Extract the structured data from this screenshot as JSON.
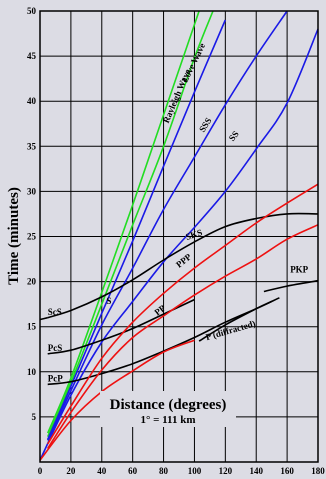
{
  "chart_data": {
    "type": "line",
    "title": "",
    "xlabel": "Distance (degrees)",
    "xlabel_note": "1° = 111 km",
    "ylabel": "Time (minutes)",
    "xlim": [
      0,
      180
    ],
    "ylim": [
      0,
      50
    ],
    "x_ticks": [
      0,
      20,
      40,
      60,
      80,
      100,
      120,
      140,
      160,
      180
    ],
    "y_ticks": [
      5,
      10,
      15,
      20,
      25,
      30,
      35,
      40,
      45,
      50
    ],
    "grid": true,
    "colors": {
      "background": "#dcdce4",
      "grid": "#000000",
      "green": "#22dd22",
      "blue": "#1a1ae6",
      "black": "#000000",
      "red": "#ee1111"
    },
    "series": [
      {
        "name": "Rayleigh Wave",
        "color": "#22dd22",
        "label_pos": [
          83,
          37.5
        ],
        "label_rot": -67,
        "x": [
          5,
          20,
          40,
          60,
          80,
          103
        ],
        "y": [
          3.2,
          9.3,
          18.8,
          28.5,
          38.5,
          50
        ]
      },
      {
        "name": "Love Wave",
        "color": "#22dd22",
        "label_pos": [
          95,
          42
        ],
        "label_rot": -64,
        "x": [
          5,
          20,
          40,
          60,
          80,
          100,
          112
        ],
        "y": [
          2.8,
          8.8,
          17.5,
          26.3,
          35,
          44.8,
          50
        ]
      },
      {
        "name": "SSS",
        "color": "#1a1ae6",
        "label_pos": [
          106,
          36.5
        ],
        "label_rot": -57,
        "x": [
          5,
          20,
          40,
          60,
          80,
          100,
          120
        ],
        "y": [
          2.5,
          8.4,
          16.5,
          24.5,
          32.8,
          41,
          49
        ]
      },
      {
        "name": "SS",
        "color": "#1a1ae6",
        "label_pos": [
          125,
          35.5
        ],
        "label_rot": -52,
        "x": [
          5,
          20,
          40,
          60,
          80,
          100,
          120,
          140,
          160
        ],
        "y": [
          2.4,
          7.9,
          15.2,
          21.5,
          28,
          33.8,
          39.6,
          45,
          50
        ]
      },
      {
        "name": "S",
        "color": "#1a1ae6",
        "label_pos": [
          43,
          17.5
        ],
        "label_rot": 0,
        "x": [
          0,
          20,
          40,
          60,
          80,
          100
        ],
        "y": [
          0.2,
          7.4,
          13.3,
          17.8,
          22.2,
          26
        ]
      },
      {
        "name": "S-continuation",
        "color": "#1a1ae6",
        "label_pos": null,
        "label_rot": 0,
        "x": [
          100,
          120,
          140,
          160,
          180
        ],
        "y": [
          26,
          30,
          34.7,
          39.8,
          48
        ]
      },
      {
        "name": "SKS",
        "color": "#000000",
        "label_pos": [
          95,
          24.6
        ],
        "label_rot": -18,
        "x": [
          5,
          20,
          40,
          60,
          80,
          100,
          120,
          140,
          160,
          180
        ],
        "y": [
          16,
          16.8,
          18.3,
          20.2,
          22.4,
          24.4,
          26.1,
          27,
          27.5,
          27.5
        ]
      },
      {
        "name": "ScS",
        "color": "#000000",
        "label_pos": [
          5,
          16.3
        ],
        "label_rot": 0,
        "x": [
          0,
          5
        ],
        "y": [
          15.8,
          16
        ]
      },
      {
        "name": "PcS",
        "color": "#000000",
        "label_pos": [
          5,
          12.3
        ],
        "label_rot": 0,
        "x": [
          5,
          20,
          40,
          60,
          80,
          100
        ],
        "y": [
          12,
          12.4,
          13.5,
          14.8,
          16.4,
          18
        ]
      },
      {
        "name": "PcP",
        "color": "#000000",
        "label_pos": [
          5,
          8.9
        ],
        "label_rot": 0,
        "x": [
          5,
          20,
          40,
          60,
          80,
          100,
          120,
          140,
          155
        ],
        "y": [
          8.6,
          8.9,
          9.8,
          10.9,
          12.3,
          13.8,
          15.5,
          17,
          18.2
        ]
      },
      {
        "name": "PKP",
        "color": "#000000",
        "label_pos": [
          162,
          21
        ],
        "label_rot": 0,
        "x": [
          145,
          160,
          180
        ],
        "y": [
          18.9,
          19.5,
          20.1
        ]
      },
      {
        "name": "P (diffracted)",
        "color": "#000000",
        "label_pos": [
          108,
          13.5
        ],
        "label_rot": -16,
        "x": [
          103,
          120,
          140,
          150
        ],
        "y": [
          13.4,
          15.2,
          17,
          17.8
        ]
      },
      {
        "name": "P",
        "color": "#ee1111",
        "label_pos": [
          40,
          5.5
        ],
        "label_rot": 0,
        "x": [
          0,
          20,
          40,
          60,
          80,
          100
        ],
        "y": [
          0.2,
          4.6,
          7.8,
          10.1,
          12.2,
          13.5
        ]
      },
      {
        "name": "PP",
        "color": "#ee1111",
        "label_pos": [
          76,
          16.2
        ],
        "label_rot": -38,
        "x": [
          5,
          20,
          40,
          60,
          80,
          100,
          120,
          140,
          160,
          180
        ],
        "y": [
          1.5,
          5.5,
          10.2,
          13.8,
          16.2,
          18.5,
          20.6,
          22.5,
          24.7,
          26.3
        ]
      },
      {
        "name": "PPP",
        "color": "#ee1111",
        "label_pos": [
          90,
          21.5
        ],
        "label_rot": -38,
        "x": [
          5,
          20,
          40,
          60,
          80,
          100,
          120,
          140,
          160,
          180
        ],
        "y": [
          2,
          6.2,
          11.5,
          15.5,
          18.7,
          21.5,
          24,
          26.5,
          28.7,
          30.8
        ]
      }
    ]
  }
}
